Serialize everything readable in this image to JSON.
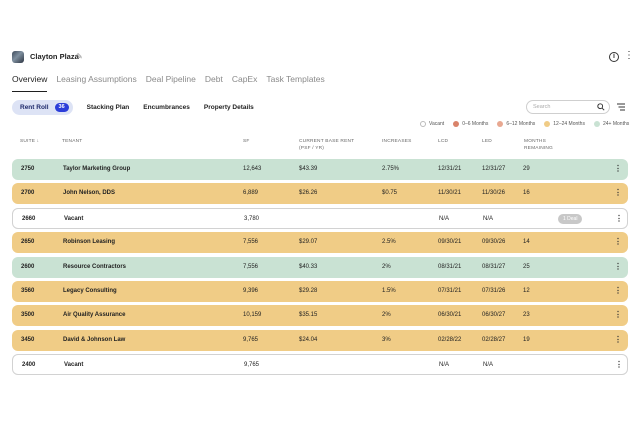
{
  "property": {
    "name": "Clayton Plaza"
  },
  "tabs": [
    {
      "label": "Overview"
    },
    {
      "label": "Leasing Assumptions"
    },
    {
      "label": "Deal Pipeline"
    },
    {
      "label": "Debt"
    },
    {
      "label": "CapEx"
    },
    {
      "label": "Task Templates"
    }
  ],
  "subnav": {
    "rent_roll": "Rent Roll",
    "rent_roll_count": "36",
    "stacking_plan": "Stacking Plan",
    "encumbrances": "Encumbrances",
    "property_details": "Property Details"
  },
  "search": {
    "placeholder": "Search"
  },
  "legend": [
    {
      "label": "Vacant",
      "color": "#ffffff"
    },
    {
      "label": "0–6 Months",
      "color": "#d9836a"
    },
    {
      "label": "6–12 Months",
      "color": "#e8a891"
    },
    {
      "label": "12–24 Months",
      "color": "#f0cc86"
    },
    {
      "label": "24+ Months",
      "color": "#c9e2d3"
    }
  ],
  "columns": {
    "suite": "SUITE ↓",
    "tenant": "TENANT",
    "sf": "SF",
    "rent_line1": "CURRENT BASE RENT",
    "rent_line2": "(PSF / YR)",
    "increases": "INCREASES",
    "lcd": "LCD",
    "led": "LED",
    "months_line1": "MONTHS",
    "months_line2": "REMAINING"
  },
  "rows": [
    {
      "suite": "2750",
      "tenant": "Taylor Marketing Group",
      "sf": "12,643",
      "rent": "$43.39",
      "increases": "2.75%",
      "lcd": "12/31/21",
      "led": "12/31/27",
      "months": "29",
      "status": "24+",
      "color": "#c9e2d3"
    },
    {
      "suite": "2700",
      "tenant": "John Nelson, DDS",
      "sf": "6,889",
      "rent": "$26.26",
      "increases": "$0.75",
      "lcd": "11/30/21",
      "led": "11/30/26",
      "months": "16",
      "status": "12-24",
      "color": "#f0cc86"
    },
    {
      "suite": "2660",
      "tenant": "Vacant",
      "sf": "3,780",
      "rent": "",
      "increases": "",
      "lcd": "N/A",
      "led": "N/A",
      "months": "",
      "status": "vacant",
      "color": "#ffffff",
      "badge": "1 Deal"
    },
    {
      "suite": "2650",
      "tenant": "Robinson Leasing",
      "sf": "7,556",
      "rent": "$29.07",
      "increases": "2.5%",
      "lcd": "09/30/21",
      "led": "09/30/26",
      "months": "14",
      "status": "12-24",
      "color": "#f0cc86"
    },
    {
      "suite": "2600",
      "tenant": "Resource Contractors",
      "sf": "7,556",
      "rent": "$40.33",
      "increases": "2%",
      "lcd": "08/31/21",
      "led": "08/31/27",
      "months": "25",
      "status": "24+",
      "color": "#c9e2d3"
    },
    {
      "suite": "3560",
      "tenant": "Legacy Consulting",
      "sf": "9,396",
      "rent": "$29.28",
      "increases": "1.5%",
      "lcd": "07/31/21",
      "led": "07/31/26",
      "months": "12",
      "status": "12-24",
      "color": "#f0cc86"
    },
    {
      "suite": "3500",
      "tenant": "Air Quality Assurance",
      "sf": "10,159",
      "rent": "$35.15",
      "increases": "2%",
      "lcd": "06/30/21",
      "led": "06/30/27",
      "months": "23",
      "status": "12-24",
      "color": "#f0cc86"
    },
    {
      "suite": "3450",
      "tenant": "David & Johnson Law",
      "sf": "9,765",
      "rent": "$24.04",
      "increases": "3%",
      "lcd": "02/28/22",
      "led": "02/28/27",
      "months": "19",
      "status": "12-24",
      "color": "#f0cc86"
    },
    {
      "suite": "2400",
      "tenant": "Vacant",
      "sf": "9,765",
      "rent": "",
      "increases": "",
      "lcd": "N/A",
      "led": "N/A",
      "months": "",
      "status": "vacant",
      "color": "#ffffff"
    }
  ]
}
